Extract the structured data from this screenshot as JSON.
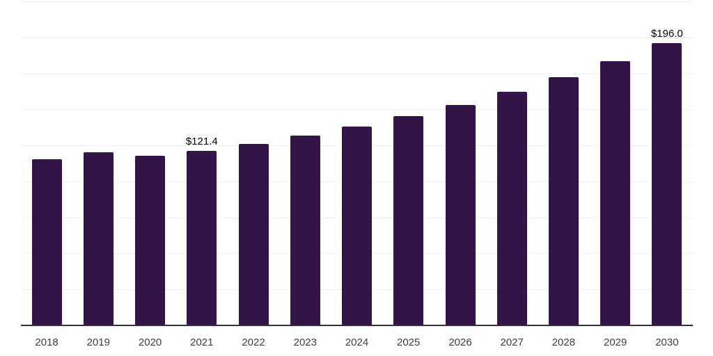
{
  "chart_data": {
    "type": "bar",
    "title": "",
    "xlabel": "",
    "ylabel": "",
    "categories": [
      "2018",
      "2019",
      "2020",
      "2021",
      "2022",
      "2023",
      "2024",
      "2025",
      "2026",
      "2027",
      "2028",
      "2029",
      "2030"
    ],
    "values": [
      115.4,
      120.2,
      117.8,
      121.4,
      125.9,
      131.8,
      138.1,
      145.2,
      153.0,
      162.2,
      172.2,
      183.5,
      196.0
    ],
    "data_labels": {
      "2021": "$121.4",
      "2030": "$196.0"
    },
    "ylim": [
      0,
      225
    ],
    "gridline_step": 25,
    "grid": true,
    "legend": false,
    "y_axis_tick_labels_visible": false,
    "colors": {
      "bar": "#331548",
      "axis": "#333333",
      "gridline": "#f0f0f0",
      "tick_label": "#404040",
      "data_label": "#000000",
      "background": "#ffffff"
    }
  }
}
